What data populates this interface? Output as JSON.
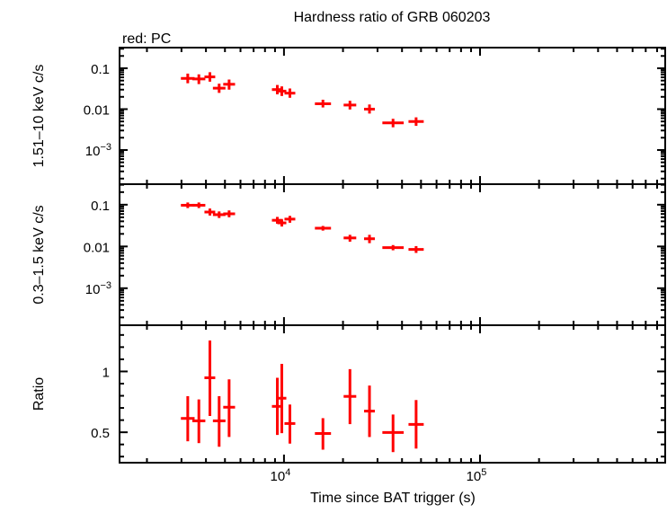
{
  "chart_data": {
    "type": "scatter",
    "title": "Hardness ratio of GRB 060203",
    "subtitle": "red: PC",
    "xlabel": "Time since BAT trigger (s)",
    "xscale": "log",
    "xlim": [
      1450,
      880000
    ],
    "x_tick_labels": [
      {
        "value": 10000,
        "base": "10",
        "exp": "4"
      },
      {
        "value": 100000,
        "base": "10",
        "exp": "5"
      }
    ],
    "series_color": "#ff0000",
    "x": [
      3230,
      3680,
      4190,
      4670,
      5250,
      9250,
      9750,
      10720,
      15800,
      21700,
      27300,
      36000,
      47200
    ],
    "x_lo": [
      2980,
      3410,
      3930,
      4340,
      4900,
      8680,
      9250,
      10060,
      14380,
      20150,
      25620,
      31760,
      43170
    ],
    "x_hi": [
      3500,
      3970,
      4460,
      5030,
      5630,
      9860,
      10280,
      11420,
      17370,
      23370,
      29080,
      40810,
      51620
    ],
    "panels": [
      {
        "ylabel": "1.51–10 keV c/s",
        "yscale": "log",
        "ylim": [
          0.000146,
          0.32
        ],
        "y_tick_labels": [
          {
            "value": 0.1,
            "text": "0.1"
          },
          {
            "value": 0.01,
            "text": "0.01"
          },
          {
            "value": 0.001,
            "base": "10",
            "exp": "−3"
          }
        ],
        "y": [
          0.0565,
          0.0548,
          0.0615,
          0.0326,
          0.0406,
          0.0301,
          0.0276,
          0.0246,
          0.0135,
          0.0126,
          0.01,
          0.00463,
          0.00497
        ],
        "y_lo": [
          0.043,
          0.041,
          0.047,
          0.025,
          0.03,
          0.023,
          0.021,
          0.019,
          0.011,
          0.0098,
          0.0078,
          0.0036,
          0.0039
        ],
        "y_hi": [
          0.074,
          0.071,
          0.08,
          0.042,
          0.053,
          0.039,
          0.036,
          0.032,
          0.017,
          0.016,
          0.013,
          0.0058,
          0.0063
        ]
      },
      {
        "ylabel": "0.3–1.5 keV c/s",
        "yscale": "log",
        "ylim": [
          0.00013,
          0.31
        ],
        "y_tick_labels": [
          {
            "value": 0.1,
            "text": "0.1"
          },
          {
            "value": 0.01,
            "text": "0.01"
          },
          {
            "value": 0.001,
            "base": "10",
            "exp": "−3"
          }
        ],
        "y": [
          0.097,
          0.097,
          0.0668,
          0.0577,
          0.0605,
          0.0424,
          0.0367,
          0.0452,
          0.0274,
          0.016,
          0.0153,
          0.0094,
          0.0085
        ],
        "y_lo": [
          0.083,
          0.083,
          0.055,
          0.048,
          0.05,
          0.035,
          0.03,
          0.037,
          0.024,
          0.013,
          0.012,
          0.0081,
          0.007
        ],
        "y_hi": [
          0.113,
          0.113,
          0.081,
          0.069,
          0.073,
          0.051,
          0.044,
          0.054,
          0.031,
          0.019,
          0.019,
          0.0108,
          0.0102
        ]
      },
      {
        "ylabel": "Ratio",
        "yscale": "linear",
        "ylim": [
          0.25,
          1.38
        ],
        "y_tick_labels": [
          {
            "value": 1,
            "text": "1"
          },
          {
            "value": 0.5,
            "text": "0.5"
          }
        ],
        "y": [
          0.614,
          0.594,
          0.948,
          0.594,
          0.706,
          0.713,
          0.78,
          0.572,
          0.49,
          0.795,
          0.674,
          0.498,
          0.565
        ],
        "y_lo": [
          0.426,
          0.411,
          0.634,
          0.381,
          0.461,
          0.478,
          0.493,
          0.407,
          0.357,
          0.567,
          0.461,
          0.337,
          0.366
        ],
        "y_hi": [
          0.797,
          0.77,
          1.254,
          0.797,
          0.935,
          0.948,
          1.062,
          0.728,
          0.616,
          1.019,
          0.884,
          0.646,
          0.765
        ]
      }
    ]
  }
}
